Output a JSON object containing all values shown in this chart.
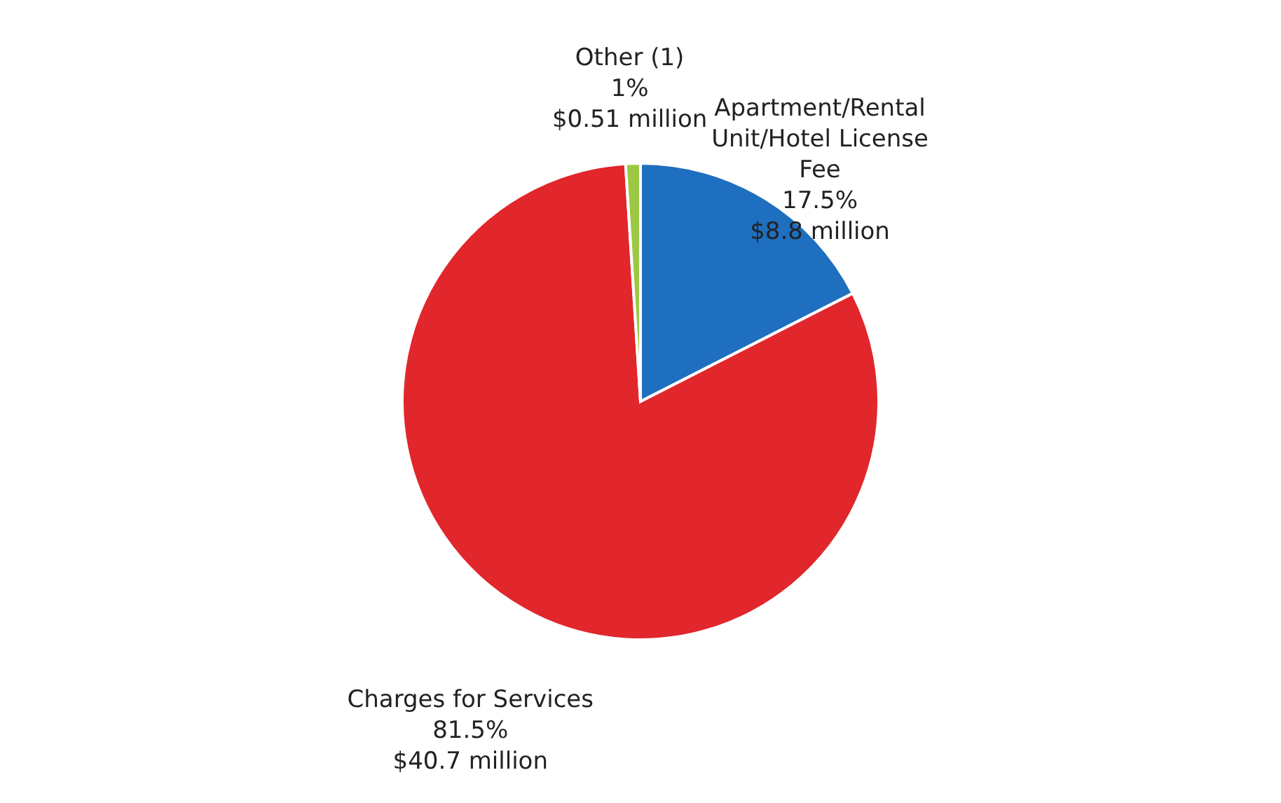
{
  "chart_data": {
    "type": "pie",
    "categories": [
      "Apartment/Rental Unit/Hotel License Fee",
      "Charges for Services",
      "Other (1)"
    ],
    "values": [
      17.5,
      81.5,
      1
    ],
    "value_labels": [
      "17.5%\n$8.8 million",
      "81.5%\n$40.7 million",
      "1%\n$0.51 million"
    ],
    "colors": [
      "#1f6fc0",
      "#e1262c",
      "#9cc843"
    ]
  }
}
